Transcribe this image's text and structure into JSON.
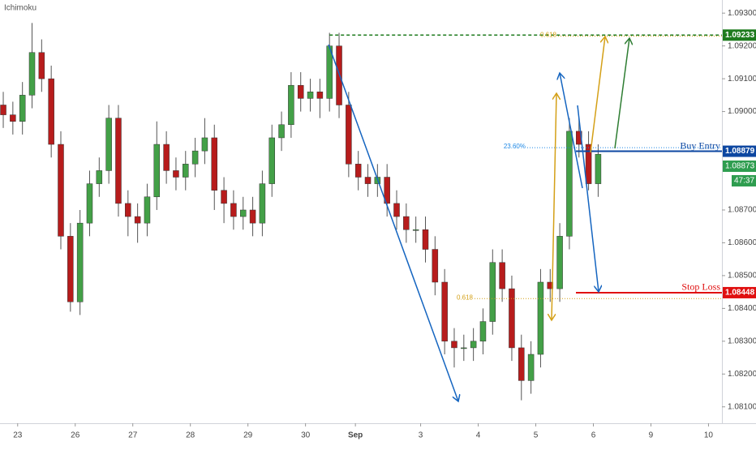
{
  "chart_data": {
    "type": "candlestick",
    "indicator_label": "Ichimoku",
    "open": [
      1.0902,
      1.0899,
      1.0897,
      1.0905,
      1.0918,
      1.091,
      1.089,
      1.0862,
      1.0842,
      1.0866,
      1.0878,
      1.0882,
      1.0898,
      1.0872,
      1.0868,
      1.0866,
      1.0874,
      1.089,
      1.0882,
      1.088,
      1.0884,
      1.0888,
      1.0892,
      1.0876,
      1.0872,
      1.0868,
      1.087,
      1.0866,
      1.0878,
      1.0892,
      1.0896,
      1.0908,
      1.0904,
      1.0906,
      1.0904,
      1.092,
      1.0902,
      1.0884,
      1.088,
      1.0878,
      1.088,
      1.0872,
      1.0868,
      1.0864,
      1.0864,
      1.0858,
      1.0848,
      1.083,
      1.0828,
      1.0828,
      1.083,
      1.0836,
      1.0854,
      1.0846,
      1.0828,
      1.0818,
      1.0826,
      1.0848,
      1.0846,
      1.0862,
      1.0894,
      1.089,
      1.0878
    ],
    "high": [
      1.0906,
      1.0903,
      1.0909,
      1.0927,
      1.0922,
      1.0914,
      1.0894,
      1.0866,
      1.087,
      1.0882,
      1.0886,
      1.0902,
      1.0902,
      1.0876,
      1.0872,
      1.0878,
      1.0897,
      1.0894,
      1.0886,
      1.0888,
      1.0892,
      1.0898,
      1.0896,
      1.088,
      1.0876,
      1.0874,
      1.0874,
      1.0882,
      1.0896,
      1.09,
      1.0912,
      1.0912,
      1.091,
      1.091,
      1.0924,
      1.0924,
      1.0906,
      1.0888,
      1.0884,
      1.0884,
      1.0884,
      1.0876,
      1.0872,
      1.0868,
      1.0868,
      1.0862,
      1.0852,
      1.0834,
      1.0832,
      1.0834,
      1.084,
      1.0858,
      1.0858,
      1.085,
      1.0832,
      1.083,
      1.0852,
      1.0852,
      1.0866,
      1.0898,
      1.0898,
      1.0894,
      1.089
    ],
    "low": [
      1.0895,
      1.0893,
      1.0893,
      1.0901,
      1.0906,
      1.0886,
      1.0858,
      1.0839,
      1.0838,
      1.0862,
      1.0874,
      1.0878,
      1.0868,
      1.0862,
      1.086,
      1.0862,
      1.087,
      1.0878,
      1.0876,
      1.0876,
      1.088,
      1.0884,
      1.087,
      1.0866,
      1.0864,
      1.0864,
      1.0862,
      1.0862,
      1.0874,
      1.0888,
      1.0892,
      1.09,
      1.09,
      1.0898,
      1.09,
      1.0898,
      1.088,
      1.0876,
      1.0874,
      1.0874,
      1.0868,
      1.0864,
      1.086,
      1.086,
      1.0854,
      1.0844,
      1.0826,
      1.0822,
      1.0824,
      1.0824,
      1.0826,
      1.0832,
      1.0842,
      1.0824,
      1.0812,
      1.0814,
      1.0822,
      1.0842,
      1.0842,
      1.0858,
      1.0886,
      1.0876,
      1.0874
    ],
    "close": [
      1.0899,
      1.0897,
      1.0905,
      1.0918,
      1.091,
      1.089,
      1.0862,
      1.0842,
      1.0866,
      1.0878,
      1.0882,
      1.0898,
      1.0872,
      1.0868,
      1.0866,
      1.0874,
      1.089,
      1.0882,
      1.088,
      1.0884,
      1.0888,
      1.0892,
      1.0876,
      1.0872,
      1.0868,
      1.087,
      1.0866,
      1.0878,
      1.0892,
      1.0896,
      1.0908,
      1.0904,
      1.0906,
      1.0904,
      1.092,
      1.0902,
      1.0884,
      1.088,
      1.0878,
      1.088,
      1.0872,
      1.0868,
      1.0864,
      1.0864,
      1.0858,
      1.0848,
      1.083,
      1.0828,
      1.0828,
      1.083,
      1.0836,
      1.0854,
      1.0846,
      1.0828,
      1.0818,
      1.0826,
      1.0848,
      1.0846,
      1.0862,
      1.0894,
      1.089,
      1.0878,
      1.0887
    ],
    "up_color": "#43a047",
    "down_color": "#b71c1c",
    "xlim": [
      -0.34,
      74.9
    ],
    "xticks": [
      {
        "value": 1.5,
        "label": "23"
      },
      {
        "value": 7.5,
        "label": "26"
      },
      {
        "value": 13.5,
        "label": "27"
      },
      {
        "value": 19.5,
        "label": "28"
      },
      {
        "value": 25.5,
        "label": "29"
      },
      {
        "value": 31.5,
        "label": "30"
      },
      {
        "value": 36.7,
        "label": "Sep"
      },
      {
        "value": 43.5,
        "label": "3"
      },
      {
        "value": 49.5,
        "label": "4"
      },
      {
        "value": 55.5,
        "label": "5"
      },
      {
        "value": 61.5,
        "label": "6"
      },
      {
        "value": 67.5,
        "label": "9"
      },
      {
        "value": 73.5,
        "label": "10"
      }
    ],
    "ylim": [
      1.0805,
      1.0934
    ],
    "yticks": [
      {
        "value": 1.093,
        "label": "1.09300"
      },
      {
        "value": 1.092,
        "label": "1.09200"
      },
      {
        "value": 1.091,
        "label": "1.09100"
      },
      {
        "value": 1.09,
        "label": "1.09000"
      },
      {
        "value": 1.087,
        "label": "1.08700"
      },
      {
        "value": 1.086,
        "label": "1.08600"
      },
      {
        "value": 1.085,
        "label": "1.08500"
      },
      {
        "value": 1.084,
        "label": "1.08400"
      },
      {
        "value": 1.083,
        "label": "1.08300"
      },
      {
        "value": 1.082,
        "label": "1.08200"
      },
      {
        "value": 1.081,
        "label": "1.08100"
      }
    ],
    "levels": [
      {
        "value": 1.09233,
        "color": "#1e7b1e"
      },
      {
        "name": "Buy Entry",
        "value": 1.08879,
        "color": "#0d47a1"
      },
      {
        "name": "Stop Loss",
        "value": 1.08448,
        "color": "#e01010"
      }
    ],
    "last_price": {
      "value": 1.08873,
      "color": "#2e9d4f",
      "countdown": "47:37"
    },
    "fib_levels": [
      {
        "label": "23.60%",
        "value": 1.0889,
        "color": "#1e88e5"
      },
      {
        "label": "0.618",
        "value": 1.0843,
        "color": "#d4a017"
      },
      {
        "label": "0.618",
        "value": 1.0923,
        "color": "#d4a017"
      }
    ]
  }
}
